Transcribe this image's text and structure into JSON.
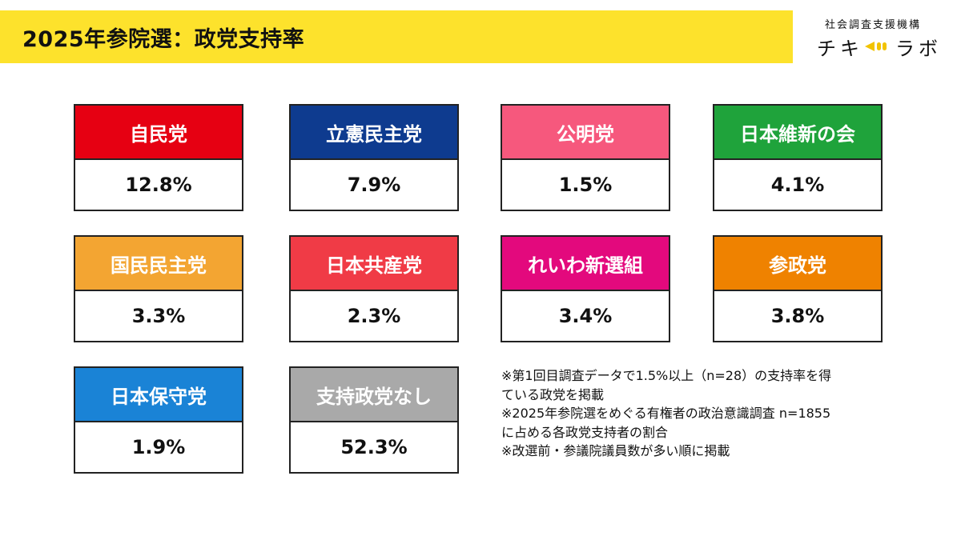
{
  "header": {
    "title": "2025年参院選：政党支持率",
    "accent_color": "#fde22c"
  },
  "brand": {
    "org": "社会調査支援機構",
    "name_part1": "チキ",
    "name_part2": "ラボ",
    "mark_icon": "megaphone-icon",
    "mark_color": "#f2c300"
  },
  "chart_data": {
    "type": "table",
    "title": "2025年参院選：政党支持率",
    "unit": "%",
    "categories": [
      "自民党",
      "立憲民主党",
      "公明党",
      "日本維新の会",
      "国民民主党",
      "日本共産党",
      "れいわ新選組",
      "参政党",
      "日本保守党",
      "支持政党なし"
    ],
    "values": [
      12.8,
      7.9,
      1.5,
      4.1,
      3.3,
      2.3,
      3.4,
      3.8,
      1.9,
      52.3
    ],
    "value_labels": [
      "12.8%",
      "7.9%",
      "1.5%",
      "4.1%",
      "3.3%",
      "2.3%",
      "3.4%",
      "3.8%",
      "1.9%",
      "52.3%"
    ],
    "colors": [
      "#e60012",
      "#0e3b8f",
      "#f6587d",
      "#1fa33b",
      "#f3a532",
      "#f03b46",
      "#e3097d",
      "#ef8200",
      "#1a83d6",
      "#a9a9a9"
    ]
  },
  "notes": [
    "※第1回目調査データで1.5%以上（n=28）の支持率を得",
    "ている政党を掲載",
    "※2025年参院選をめぐる有権者の政治意識調査 n=1855",
    "に占める各政党支持者の割合",
    "※改選前・参議院議員数が多い順に掲載"
  ]
}
